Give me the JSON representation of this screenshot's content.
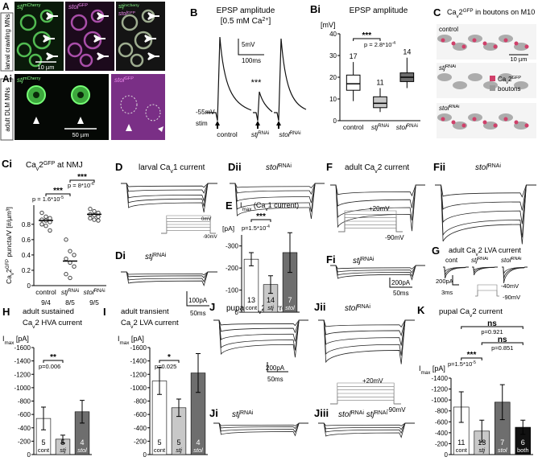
{
  "panels": {
    "A": {
      "label": "A",
      "side": "larval crawling MNs",
      "ch1": [
        "stj",
        "mCherry"
      ],
      "ch2": [
        "stol",
        "GFP"
      ],
      "merge1": [
        "stj",
        "mCherry"
      ],
      "merge2": [
        "stol",
        "GFP"
      ],
      "scale": "10 µm"
    },
    "Ai": {
      "label": "Ai",
      "side": "adult DLM MNs",
      "ch1": [
        "stj",
        "mCherry"
      ],
      "ch2": [
        "stol",
        "GFP"
      ],
      "scale": "50 µm"
    },
    "B": {
      "label": "B",
      "title": "EPSP amplitude",
      "subtitle": [
        "[0.5 mM Ca",
        "2+",
        "]"
      ],
      "scale_v": "5mV",
      "scale_t": "100ms",
      "rest": "-55mV",
      "stim": "stim",
      "sig": "***",
      "cat0": "control",
      "cat1": [
        "stj",
        "RNAi"
      ],
      "cat2": [
        "stol",
        "RNAi"
      ]
    },
    "C": {
      "label": "C",
      "title": [
        "Ca",
        "v",
        "2",
        "GFP",
        " in boutons on M10"
      ],
      "row0": "control",
      "row1": [
        "stj",
        "RNAi"
      ],
      "row2": [
        "stol",
        "RNAi"
      ],
      "scale": "10 µm",
      "legend0": [
        "Ca",
        "v",
        "2",
        "GFP"
      ],
      "legend1": "boutons"
    },
    "D": {
      "label": "D",
      "title": [
        "larval Ca",
        "v",
        "1 current"
      ],
      "step_hi": "0mV",
      "step_lo": "-90mV"
    },
    "Dii": {
      "label": "Dii",
      "title": [
        "stol",
        "RNAi"
      ]
    },
    "Di": {
      "label": "Di",
      "title": [
        "stj",
        "RNAi"
      ],
      "scale_i": "100pA",
      "scale_t": "50ms"
    },
    "F": {
      "label": "F",
      "title": [
        "adult Ca",
        "v",
        "2 current"
      ],
      "step_hi": "+20mV",
      "step_lo": "-90mV"
    },
    "Fii": {
      "label": "Fii",
      "title": [
        "stol",
        "RNAi"
      ]
    },
    "Fi": {
      "label": "Fi",
      "title": [
        "stj",
        "RNAi"
      ],
      "scale_i": "200pA",
      "scale_t": "50ms"
    },
    "G": {
      "label": "G",
      "title": [
        "adult Ca",
        "v",
        "2 LVA current"
      ],
      "cont": "cont",
      "stj": [
        "stj",
        "RNAi"
      ],
      "stol": [
        "stol",
        "RNAi"
      ],
      "scale_i": "200pA",
      "scale_t": "3ms",
      "step_hi": "-40mV",
      "step_lo": "-90mV"
    },
    "J": {
      "label": "J",
      "title": [
        "pupal Ca",
        "v",
        "2 current"
      ],
      "scale_i": "200pA",
      "scale_t": "50ms"
    },
    "Jii": {
      "label": "Jii",
      "title": [
        "stol",
        "RNAi"
      ],
      "step_hi": "+20mV",
      "step_lo": "-90mV"
    },
    "Ji": {
      "label": "Ji",
      "title": [
        "stj",
        "RNAi"
      ]
    },
    "Jiii": {
      "label": "Jiii",
      "title": [
        "stol",
        "RNAi",
        " ",
        "stj",
        "RNAi"
      ]
    }
  },
  "chart_data": [
    {
      "type": "box",
      "label": "Bi",
      "title": "EPSP amplitude",
      "y_label": "[mV]",
      "categories": [
        "control",
        [
          "stj",
          "RNAi"
        ],
        [
          "stol",
          "RNAi"
        ]
      ],
      "values": [
        17,
        8,
        20
      ],
      "q1": [
        14,
        6,
        18
      ],
      "q3": [
        21,
        11,
        22
      ],
      "whisker_low": [
        9,
        4,
        15
      ],
      "whisker_high": [
        27,
        15,
        29
      ],
      "n": [
        17,
        11,
        14
      ],
      "colors": [
        "#ffffff",
        "#c8c8c8",
        "#6e6e6e"
      ],
      "ylim": [
        0,
        40
      ],
      "yticks": [
        0,
        10,
        20,
        30,
        40
      ],
      "sig": "***",
      "p": [
        "p = 2.8*10",
        "-4"
      ]
    },
    {
      "type": "mean",
      "label": "Ci",
      "title": [
        "Ca",
        "v",
        "2",
        "GFP",
        " at NMJ"
      ],
      "y_label": [
        "Ca",
        "v",
        "2",
        "GFP",
        " puncta/V [#/µm³]"
      ],
      "categories": [
        "control",
        [
          "stj",
          "RNAi"
        ],
        [
          "stol",
          "RNAi"
        ]
      ],
      "values": [
        0.85,
        0.32,
        0.93
      ],
      "points": [
        [
          0.95,
          0.9,
          0.88,
          0.86,
          0.85,
          0.83,
          0.8,
          0.78,
          0.72
        ],
        [
          0.6,
          0.45,
          0.4,
          0.35,
          0.3,
          0.25,
          0.15,
          0.1
        ],
        [
          1.0,
          0.97,
          0.95,
          0.93,
          0.92,
          0.9,
          0.88,
          0.86,
          0.85
        ]
      ],
      "n_labels": [
        "9/4",
        "8/5",
        "9/5"
      ],
      "ylim": [
        0,
        1.05
      ],
      "yticks": [
        0,
        0.2,
        0.4,
        0.6,
        0.8
      ],
      "sig1": "***",
      "p1": [
        "p = 1.6*10",
        "-5"
      ],
      "sig2": "***",
      "p2": [
        "p = 8*10",
        "-6"
      ]
    },
    {
      "type": "bar",
      "label": "E",
      "title": [
        "I",
        "max",
        " (Ca",
        "v",
        "1 current)"
      ],
      "y_label": "[pA]",
      "categories": [
        "cont",
        "stj",
        "stol"
      ],
      "values": [
        -240,
        -125,
        -270
      ],
      "errors": [
        30,
        40,
        90
      ],
      "n": [
        13,
        14,
        7
      ],
      "colors": [
        "#ffffff",
        "#c8c8c8",
        "#6e6e6e"
      ],
      "ylim": [
        0,
        -350
      ],
      "yticks": [
        0,
        -100,
        -200,
        -300
      ],
      "sig": "***",
      "p": [
        "p=1.5*10",
        "-4"
      ]
    },
    {
      "type": "bar",
      "label": "H",
      "title": "adult sustained",
      "title2": [
        "Ca",
        "v",
        "2 HVA current"
      ],
      "y_label": [
        "I",
        "max",
        " [pA]"
      ],
      "categories": [
        "cont",
        "stj",
        "stol"
      ],
      "values": [
        -540,
        -230,
        -640
      ],
      "errors": [
        170,
        60,
        170
      ],
      "n": [
        5,
        5,
        4
      ],
      "colors": [
        "#ffffff",
        "#c8c8c8",
        "#6e6e6e"
      ],
      "ylim": [
        0,
        -1600
      ],
      "yticks": [
        0,
        -200,
        -400,
        -600,
        -800,
        -1000,
        -1200,
        -1400,
        -1600
      ],
      "sig": "**",
      "p": "p=0.006"
    },
    {
      "type": "bar",
      "label": "I",
      "title": "adult transient",
      "title2": [
        "Ca",
        "v",
        "2 LVA current"
      ],
      "y_label": [
        "I",
        "max",
        " [pA]"
      ],
      "categories": [
        "cont",
        "stj",
        "stol"
      ],
      "values": [
        -1100,
        -700,
        -1220
      ],
      "errors": [
        200,
        130,
        290
      ],
      "n": [
        5,
        5,
        4
      ],
      "colors": [
        "#ffffff",
        "#c8c8c8",
        "#6e6e6e"
      ],
      "ylim": [
        0,
        -1600
      ],
      "yticks": [
        0,
        -200,
        -400,
        -600,
        -800,
        -1000,
        -1200,
        -1400,
        -1600
      ],
      "sig": "*",
      "p": "p=0.025"
    },
    {
      "type": "bar",
      "label": "K",
      "title": [
        "pupal Ca",
        "v",
        "2 current"
      ],
      "y_label": [
        "I",
        "max",
        " [pA]"
      ],
      "categories": [
        "cont",
        "stj",
        "stol",
        "both"
      ],
      "values": [
        -870,
        -430,
        -960,
        -500
      ],
      "errors": [
        280,
        200,
        320,
        130
      ],
      "n": [
        11,
        13,
        7,
        6
      ],
      "colors": [
        "#ffffff",
        "#c8c8c8",
        "#6e6e6e",
        "#111111"
      ],
      "ylim": [
        0,
        -1400
      ],
      "yticks": [
        0,
        -200,
        -400,
        -600,
        -800,
        -1000,
        -1200,
        -1400
      ],
      "sig": "***",
      "p": [
        "p=1.5*10",
        "-5"
      ],
      "ns1": "ns",
      "p_ns1": "p=0.921",
      "ns2": "ns",
      "p_ns2": "p=0.851"
    }
  ]
}
